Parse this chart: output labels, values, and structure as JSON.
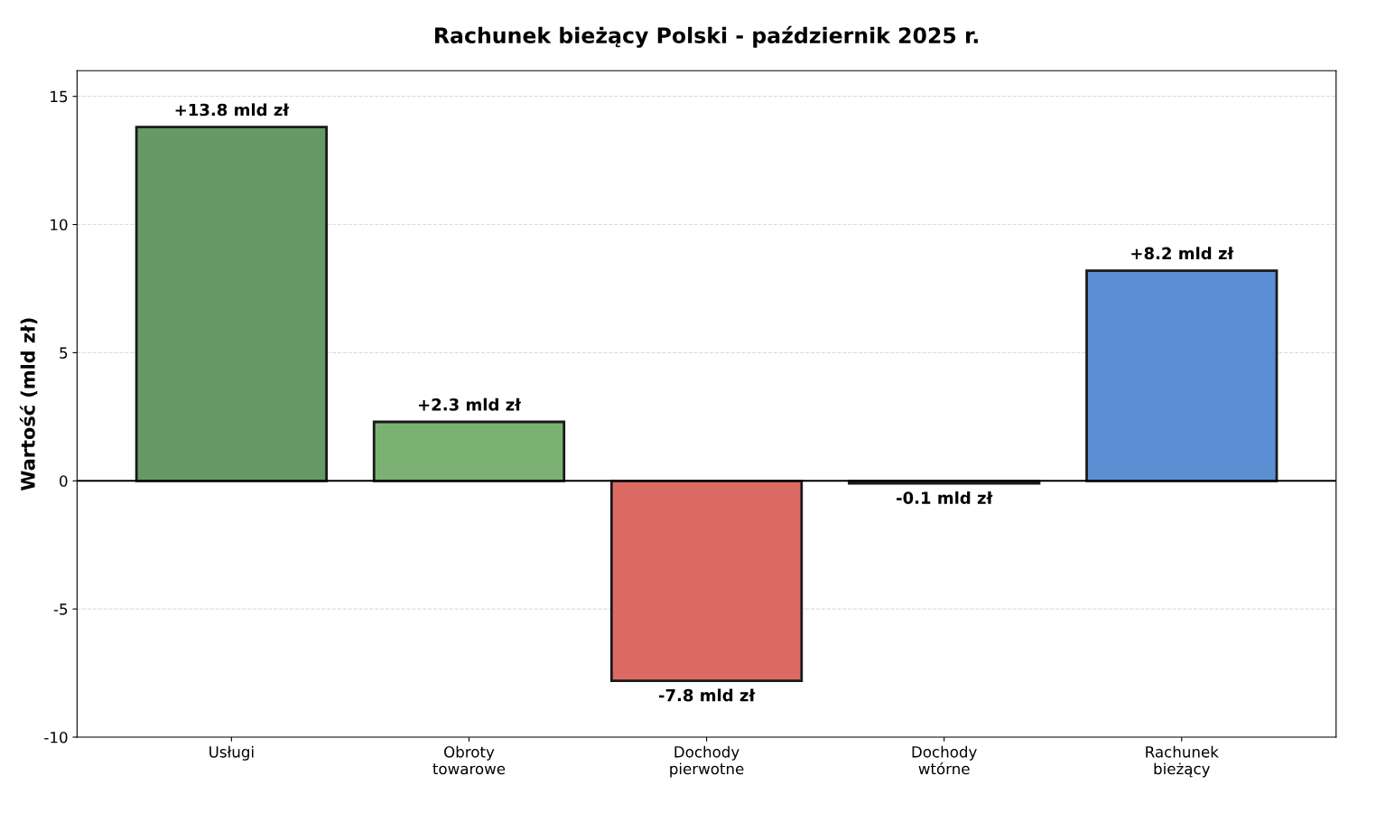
{
  "chart_data": {
    "type": "bar",
    "title": "Rachunek bieżący Polski - październik 2025 r.",
    "ylabel": "Wartość (mld zł)",
    "categories": [
      "Usługi",
      "Obroty\ntowarowe",
      "Dochody\npierwotne",
      "Dochody\nwtórne",
      "Rachunek\nbieżący"
    ],
    "values": [
      13.8,
      2.3,
      -7.8,
      -0.1,
      8.2
    ],
    "colors": [
      "#669966",
      "#7bb274",
      "#dc6b65",
      "#dc6b65",
      "#5b8fd4"
    ],
    "value_labels": [
      "+13.8 mld zł",
      "+2.3 mld zł",
      "-7.8 mld zł",
      "-0.1 mld zł",
      "+8.2 mld zł"
    ],
    "ylim": [
      -10,
      16
    ],
    "yticks": [
      -10,
      -5,
      0,
      5,
      10,
      15
    ],
    "grid": "y",
    "ref_lines": [
      {
        "axis": "y",
        "value": 0,
        "color": "#000000"
      }
    ]
  }
}
